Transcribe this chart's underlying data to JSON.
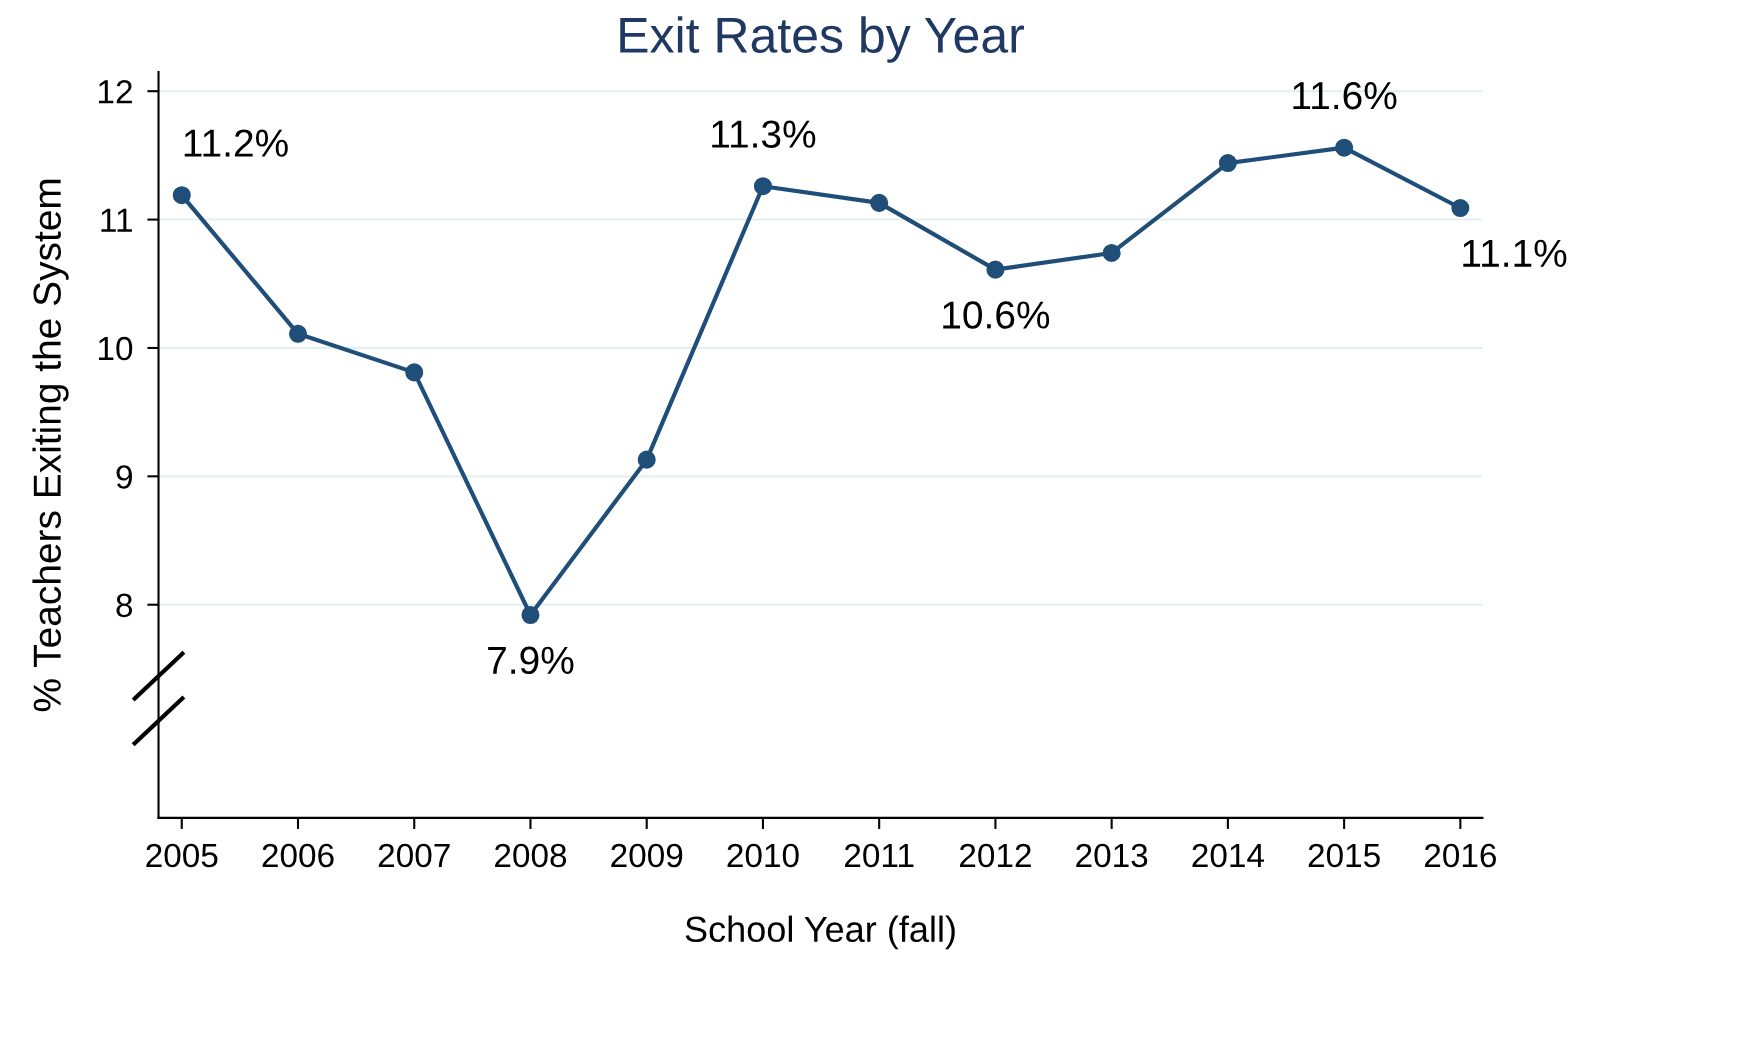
{
  "chart_data": {
    "type": "line",
    "title": "Exit Rates by Year",
    "xlabel": "School Year (fall)",
    "ylabel": "% Teachers Exiting the System",
    "x": [
      2005,
      2006,
      2007,
      2008,
      2009,
      2010,
      2011,
      2012,
      2013,
      2014,
      2015,
      2016
    ],
    "series": [
      {
        "color": "#1f4e79",
        "values": [
          11.19,
          10.11,
          9.81,
          7.92,
          9.13,
          11.26,
          11.13,
          10.61,
          10.74,
          11.44,
          11.56,
          11.09
        ],
        "value_labels": [
          "11.2%",
          null,
          null,
          "7.9%",
          null,
          "11.3%",
          null,
          "10.6%",
          null,
          null,
          "11.6%",
          "11.1%"
        ]
      }
    ],
    "xlim": [
      2004.8,
      2016.19
    ],
    "xticks": [
      2005,
      2006,
      2007,
      2008,
      2009,
      2010,
      2011,
      2012,
      2013,
      2014,
      2015,
      2016
    ],
    "ylim": [
      6.34,
      12.15
    ],
    "yticks": [
      8,
      9,
      10,
      11,
      12
    ],
    "grid": "y",
    "marker": "circle",
    "line_style": "solid",
    "legend": false
  }
}
